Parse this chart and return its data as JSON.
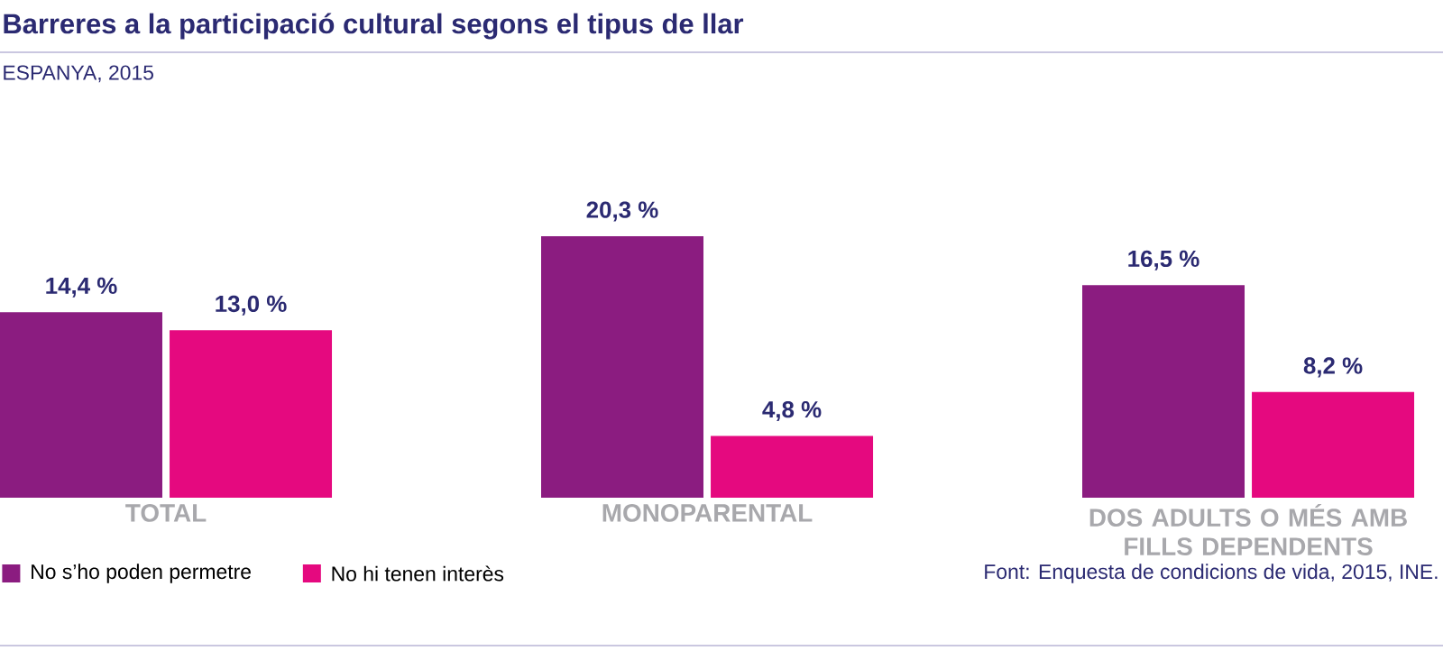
{
  "chart_data": {
    "type": "bar",
    "title": "Barreres a la participació cultural segons el tipus de llar",
    "subtitle": "ESPANYA, 2015",
    "categories": [
      "TOTAL",
      "MONOPARENTAL",
      "DOS ADULTS O MÉS AMB FILLS DEPENDENTS"
    ],
    "series": [
      {
        "name": "No s’ho poden permetre",
        "color": "#8b1c80",
        "values": [
          14.4,
          20.3,
          16.5
        ],
        "value_labels": [
          "14,4 %",
          "20,3 %",
          "16,5 %"
        ]
      },
      {
        "name": "No hi tenen interès",
        "color": "#e5097f",
        "values": [
          13.0,
          4.8,
          8.2
        ],
        "value_labels": [
          "13,0 %",
          "4,8 %",
          "8,2 %"
        ]
      }
    ],
    "legend": "bottom left",
    "annotations": [
      "Font: Enquesta de condicions de vida, 2015, INE."
    ]
  }
}
